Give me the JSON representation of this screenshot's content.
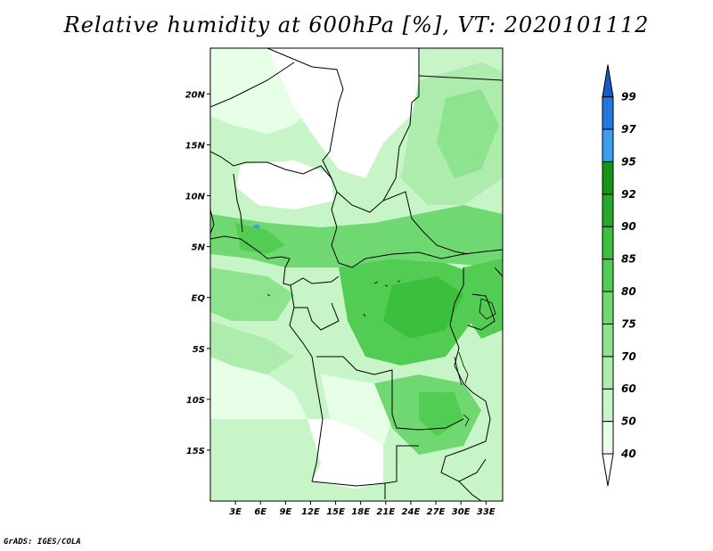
{
  "title": "Relative humidity at 600hPa [%], VT: 2020101112",
  "credit": "GrADS: IGES/COLA",
  "map": {
    "lat_labels": [
      "20N",
      "15N",
      "10N",
      "5N",
      "EQ",
      "5S",
      "10S",
      "15S"
    ],
    "lon_labels": [
      "3E",
      "6E",
      "9E",
      "12E",
      "15E",
      "18E",
      "21E",
      "24E",
      "27E",
      "30E",
      "33E"
    ],
    "lon_range": [
      0,
      35
    ],
    "lat_range": [
      -20,
      24.5
    ]
  },
  "colorbar": {
    "labels": [
      "40",
      "50",
      "60",
      "70",
      "75",
      "80",
      "85",
      "90",
      "92",
      "95",
      "97",
      "99"
    ],
    "colors": [
      "#ffffff",
      "#e6ffe6",
      "#c8f5c8",
      "#aeecae",
      "#8ee38e",
      "#70d870",
      "#52cc52",
      "#3cbf3c",
      "#28a828",
      "#159415",
      "#3c9cf0",
      "#2476e0",
      "#1a5ac8"
    ]
  }
}
